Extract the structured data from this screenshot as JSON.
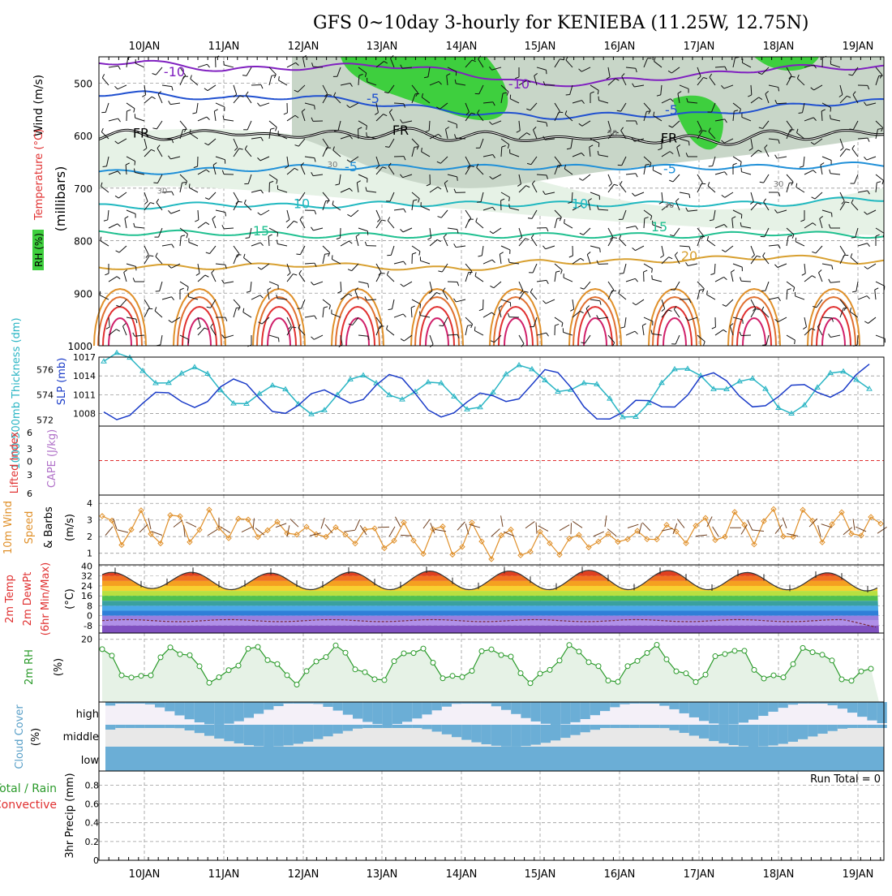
{
  "title": "GFS 0~10day 3-hourly for KENIEBA (11.25W, 12.75N)",
  "dates": [
    "10JAN",
    "11JAN",
    "12JAN",
    "13JAN",
    "14JAN",
    "15JAN",
    "16JAN",
    "17JAN",
    "18JAN",
    "19JAN"
  ],
  "colors": {
    "grid": "#9a9a9a",
    "cyan": "#2ab5c4",
    "blue": "#1a3bc8",
    "orange": "#e0902a",
    "green": "#2a9a2a",
    "red": "#e03030",
    "purple": "#b070c8",
    "cloud": "#6baed6",
    "rhGreen": "#3ecf3e"
  },
  "panels": {
    "upper": {
      "ylabel_wind": "Wind (m/s)",
      "ylabel_temp": "Temperature (°C)",
      "ylabel_rh": "RH (%)",
      "ylabel_mb": "(millibars)",
      "ticks": [
        "500",
        "600",
        "700",
        "800",
        "900",
        "1000"
      ],
      "contour_labels": [
        "-10",
        "-10",
        "-5",
        "-5",
        "FR",
        "FR",
        "FR",
        "-5",
        "-5",
        "5",
        "10",
        "10",
        "15",
        "15",
        "20",
        "30",
        "30",
        "30",
        "30",
        "30",
        "30"
      ],
      "chart_data": {
        "type": "contour",
        "x": [
          "10JAN",
          "11JAN",
          "12JAN",
          "13JAN",
          "14JAN",
          "15JAN",
          "16JAN",
          "17JAN",
          "18JAN",
          "19JAN"
        ],
        "ylim": [
          1000,
          450
        ],
        "isotherms": [
          {
            "name": "-10",
            "levels_mb": [
              460,
              475,
              470,
              465,
              480,
              505,
              495,
              485,
              470,
              470
            ],
            "color": "#8020c0"
          },
          {
            "name": "-5",
            "levels_mb": [
              520,
              530,
              525,
              540,
              555,
              565,
              560,
              560,
              545,
              535
            ],
            "color": "#2050d0"
          },
          {
            "name": "FR",
            "levels_mb": [
              600,
              595,
              600,
              595,
              600,
              605,
              605,
              610,
              600,
              595
            ],
            "color": "#000000"
          },
          {
            "name": "5",
            "levels_mb": [
              670,
              665,
              660,
              660,
              660,
              660,
              660,
              660,
              660,
              655
            ],
            "color": "#2090d8"
          },
          {
            "name": "10",
            "levels_mb": [
              735,
              730,
              735,
              730,
              730,
              730,
              730,
              730,
              730,
              720
            ],
            "color": "#20b8c0"
          },
          {
            "name": "15",
            "levels_mb": [
              785,
              785,
              790,
              790,
              790,
              790,
              790,
              790,
              785,
              790
            ],
            "color": "#20c090"
          },
          {
            "name": "20",
            "levels_mb": [
              850,
              850,
              845,
              850,
              855,
              840,
              840,
              835,
              830,
              840
            ],
            "color": "#d8a030"
          }
        ]
      }
    },
    "pressure": {
      "ylabel_thick": "1000-500mb Thickness (dm)",
      "ylabel_slp": "SLP (mb)",
      "left_ticks": [
        "576",
        "574",
        "572"
      ],
      "right_ticks": [
        "1017",
        "1014",
        "1011",
        "1008"
      ],
      "chart_data": {
        "type": "line",
        "x": [
          "10JAN",
          "11JAN",
          "12JAN",
          "13JAN",
          "14JAN",
          "15JAN",
          "16JAN",
          "17JAN",
          "18JAN",
          "19JAN"
        ],
        "series": [
          {
            "name": "SLP",
            "values": [
              1015.5,
              1012.0,
              1009.5,
              1013.0,
              1010.0,
              1015.0,
              1008.5,
              1015.0,
              1009.5,
              1014.0
            ],
            "color": "#2ab5c4"
          },
          {
            "name": "1000-500mb Thickness",
            "values": [
              573.0,
              574.5,
              573.0,
              575.0,
              572.5,
              575.5,
              572.0,
              575.0,
              573.5,
              575.5
            ],
            "color": "#1a3bc8"
          }
        ],
        "ylim_slp": [
          1006,
          1017
        ],
        "ylim_thick": [
          571.5,
          577
        ]
      }
    },
    "cape": {
      "ylabel_li": "Lifted Index",
      "ylabel_cape": "CAPE (J/kg)",
      "ticks": [
        "6",
        "3",
        "0",
        "3",
        "6"
      ],
      "chart_data": {
        "type": "line",
        "series": [
          {
            "name": "Lifted Index",
            "values": []
          }
        ],
        "ylim": [
          -6,
          6
        ]
      }
    },
    "wind10": {
      "ylabel_a": "10m Wind",
      "ylabel_b": "Speed",
      "ylabel_c": "& Barbs",
      "ylabel_unit": "(m/s)",
      "ticks": [
        "4",
        "3",
        "2",
        "1"
      ],
      "chart_data": {
        "type": "line",
        "x": [
          "10JAN",
          "11JAN",
          "12JAN",
          "13JAN",
          "14JAN",
          "15JAN",
          "16JAN",
          "17JAN",
          "18JAN",
          "19JAN"
        ],
        "series": [
          {
            "name": "10m Wind Speed",
            "values": [
              2.5,
              2.7,
              2.3,
              2.0,
              1.8,
              1.5,
              1.9,
              2.4,
              2.7,
              2.6
            ],
            "color": "#e0902a"
          }
        ],
        "ylim": [
          0.3,
          4.5
        ]
      }
    },
    "temp2m": {
      "ylabel_a": "2m Temp",
      "ylabel_b": "2m DewPt",
      "ylabel_c": "(6hr Min/Max)",
      "ylabel_unit": "(°C)",
      "ticks": [
        "40",
        "32",
        "24",
        "16",
        "8",
        "0",
        "-8"
      ],
      "chart_data": {
        "type": "area",
        "x": [
          "10JAN",
          "11JAN",
          "12JAN",
          "13JAN",
          "14JAN",
          "15JAN",
          "16JAN",
          "17JAN",
          "18JAN",
          "19JAN"
        ],
        "series": [
          {
            "name": "2m Temp max",
            "values": [
              35,
              35,
              34,
              36,
              36,
              36,
              37,
              36,
              34,
              35
            ]
          },
          {
            "name": "2m Temp min",
            "values": [
              22,
              21,
              21,
              21,
              21,
              21,
              21,
              21,
              21,
              20
            ]
          },
          {
            "name": "2m DewPt",
            "values": [
              -4,
              -3,
              -4,
              -4,
              -4,
              -3,
              -4,
              -4,
              -4,
              -6
            ]
          }
        ],
        "ylim": [
          -14,
          41
        ]
      }
    },
    "rh2m": {
      "ylabel": "2m RH",
      "ylabel_unit": "(%)",
      "ticks": [
        "20"
      ],
      "chart_data": {
        "type": "line",
        "x": [
          "10JAN",
          "11JAN",
          "12JAN",
          "13JAN",
          "14JAN",
          "15JAN",
          "16JAN",
          "17JAN",
          "18JAN",
          "19JAN"
        ],
        "series": [
          {
            "name": "2m RH",
            "values": [
              17,
              10,
              17,
              10,
              16,
              10,
              15,
              12,
              17,
              13
            ],
            "color": "#2a9a2a"
          }
        ],
        "ylim": [
          0,
          22
        ]
      }
    },
    "cloud": {
      "ylabel_a": "Cloud Cover",
      "ylabel_unit": "(%)",
      "labels": [
        "high",
        "middle",
        "low"
      ],
      "chart_data": {
        "type": "area",
        "x": [
          "10JAN",
          "11JAN",
          "12JAN",
          "13JAN",
          "14JAN",
          "15JAN",
          "16JAN",
          "17JAN",
          "18JAN",
          "19JAN"
        ],
        "series": [
          {
            "name": "high",
            "values": [
              70,
              100,
              40,
              60,
              70,
              50,
              70,
              40,
              100,
              70
            ]
          },
          {
            "name": "middle",
            "values": [
              90,
              100,
              40,
              50,
              60,
              60,
              100,
              30,
              30,
              60
            ]
          },
          {
            "name": "low",
            "values": [
              100,
              100,
              100,
              100,
              100,
              100,
              100,
              100,
              100,
              100
            ]
          }
        ]
      }
    },
    "precip": {
      "ylabel_a": "Total / Rain",
      "ylabel_b": "Convective",
      "ylabel_c": "3hr Precip (mm)",
      "run_total": "Run Total = 0",
      "ticks": [
        "0.8",
        "0.6",
        "0.4",
        "0.2",
        "0"
      ],
      "chart_data": {
        "type": "bar",
        "x": [
          "10JAN",
          "11JAN",
          "12JAN",
          "13JAN",
          "14JAN",
          "15JAN",
          "16JAN",
          "17JAN",
          "18JAN",
          "19JAN"
        ],
        "series": [
          {
            "name": "Total / Rain",
            "values": [
              0,
              0,
              0,
              0,
              0,
              0,
              0,
              0,
              0,
              0
            ]
          },
          {
            "name": "Convective",
            "values": [
              0,
              0,
              0,
              0,
              0,
              0,
              0,
              0,
              0,
              0
            ]
          }
        ],
        "ylim": [
          0,
          0.95
        ]
      }
    }
  }
}
